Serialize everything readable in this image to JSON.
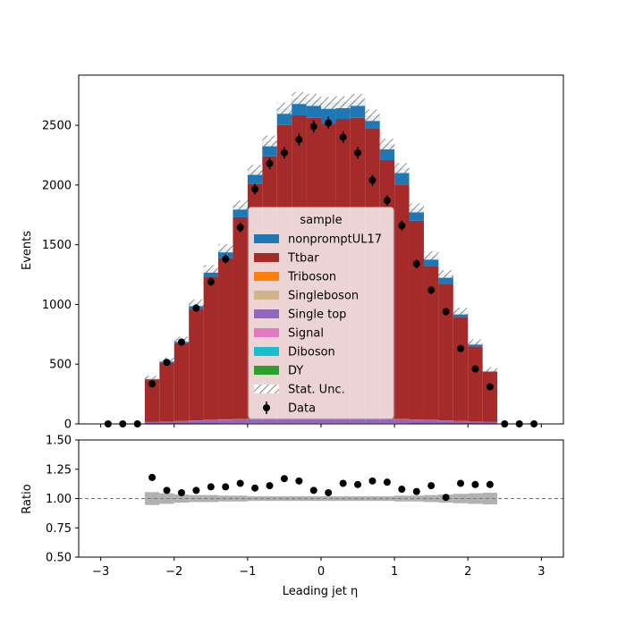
{
  "chart_data": [
    {
      "type": "bar",
      "stacked": true,
      "xlabel": "Leading jet  η",
      "ylabel": "Events",
      "xlim": [
        -3.3,
        3.3
      ],
      "ylim": [
        0,
        2920
      ],
      "bin_edges": [
        -3.0,
        -2.8,
        -2.6,
        -2.4,
        -2.2,
        -2.0,
        -1.8,
        -1.6,
        -1.4,
        -1.2,
        -1.0,
        -0.8,
        -0.6,
        -0.4,
        -0.2,
        0.0,
        0.2,
        0.4,
        0.6,
        0.8,
        1.0,
        1.2,
        1.4,
        1.6,
        1.8,
        2.0,
        2.2,
        2.4,
        2.6,
        2.8,
        3.0
      ],
      "x_ticks": [
        -3,
        -2,
        -1,
        0,
        1,
        2,
        3
      ],
      "x_tick_labels": [
        "−3",
        "−2",
        "−1",
        "0",
        "1",
        "2",
        "3"
      ],
      "y_ticks": [
        0,
        500,
        1000,
        1500,
        2000,
        2500
      ],
      "y_tick_labels": [
        "0",
        "500",
        "1000",
        "1500",
        "2000",
        "2500"
      ],
      "series": [
        {
          "name": "DY",
          "color": "#2ca02c",
          "values": [
            0,
            0,
            0,
            1,
            1,
            1,
            2,
            2,
            2,
            2,
            3,
            3,
            3,
            3,
            3,
            3,
            3,
            3,
            3,
            3,
            2,
            2,
            2,
            2,
            1,
            1,
            1,
            0,
            0,
            0
          ]
        },
        {
          "name": "Diboson",
          "color": "#17becf",
          "values": [
            0,
            0,
            0,
            1,
            1,
            1,
            1,
            1,
            2,
            2,
            2,
            2,
            2,
            2,
            2,
            2,
            2,
            2,
            2,
            2,
            2,
            1,
            1,
            1,
            1,
            1,
            1,
            0,
            0,
            0
          ]
        },
        {
          "name": "Signal",
          "color": "#e377c2",
          "values": [
            0,
            0,
            0,
            1,
            1,
            1,
            1,
            1,
            2,
            2,
            2,
            2,
            2,
            2,
            2,
            2,
            2,
            2,
            2,
            2,
            2,
            1,
            1,
            1,
            1,
            1,
            1,
            0,
            0,
            0
          ]
        },
        {
          "name": "Single top",
          "color": "#9467bd",
          "values": [
            0,
            0,
            0,
            12,
            15,
            20,
            24,
            27,
            30,
            32,
            35,
            37,
            38,
            39,
            38,
            38,
            39,
            38,
            37,
            35,
            32,
            30,
            27,
            24,
            20,
            15,
            12,
            0,
            0,
            0
          ]
        },
        {
          "name": "Singleboson",
          "color": "#d2b48c",
          "values": [
            0,
            0,
            0,
            1,
            1,
            1,
            1,
            2,
            2,
            2,
            2,
            2,
            2,
            2,
            2,
            2,
            2,
            2,
            2,
            2,
            2,
            2,
            2,
            1,
            1,
            1,
            1,
            0,
            0,
            0
          ]
        },
        {
          "name": "Triboson",
          "color": "#ff7f0e",
          "values": [
            0,
            0,
            0,
            0,
            0,
            0,
            0,
            0,
            0,
            0,
            0,
            0,
            0,
            0,
            0,
            0,
            0,
            0,
            0,
            0,
            0,
            0,
            0,
            0,
            0,
            0,
            0,
            0,
            0,
            0
          ]
        },
        {
          "name": "Ttbar",
          "color": "#a52a2a",
          "values": [
            0,
            0,
            0,
            357,
            495,
            655,
            935,
            1195,
            1350,
            1690,
            1965,
            2195,
            2455,
            2535,
            2515,
            2465,
            2505,
            2515,
            2425,
            2165,
            1965,
            1665,
            1285,
            1145,
            872,
            625,
            425,
            0,
            0,
            0
          ]
        },
        {
          "name": "nonpromptUL17",
          "color": "#1f77b4",
          "values": [
            0,
            0,
            0,
            17,
            25,
            30,
            50,
            70,
            83,
            102,
            118,
            128,
            142,
            145,
            150,
            175,
            140,
            150,
            113,
            134,
            137,
            108,
            92,
            81,
            48,
            42,
            15,
            0,
            0,
            0
          ]
        }
      ],
      "stat_unc": [
        0,
        0,
        0,
        15,
        18,
        22,
        28,
        32,
        35,
        38,
        42,
        45,
        48,
        50,
        50,
        50,
        50,
        50,
        48,
        45,
        42,
        38,
        35,
        32,
        28,
        22,
        18,
        0,
        0,
        0
      ],
      "data": {
        "name": "Data",
        "x": [
          -2.9,
          -2.7,
          -2.5,
          -2.3,
          -2.1,
          -1.9,
          -1.7,
          -1.5,
          -1.3,
          -1.1,
          -0.9,
          -0.7,
          -0.5,
          -0.3,
          -0.1,
          0.1,
          0.3,
          0.5,
          0.7,
          0.9,
          1.1,
          1.3,
          1.5,
          1.7,
          1.9,
          2.1,
          2.3,
          2.5,
          2.7,
          2.9
        ],
        "y": [
          0,
          0,
          0,
          335,
          515,
          685,
          970,
          1190,
          1380,
          1645,
          1965,
          2180,
          2270,
          2380,
          2490,
          2520,
          2400,
          2270,
          2040,
          1870,
          1660,
          1340,
          1120,
          940,
          630,
          460,
          310,
          0,
          0,
          0
        ],
        "yerr": [
          0,
          0,
          0,
          18,
          23,
          26,
          31,
          35,
          37,
          41,
          44,
          47,
          48,
          49,
          50,
          50,
          49,
          48,
          45,
          43,
          41,
          37,
          33,
          31,
          25,
          21,
          18,
          0,
          0,
          0
        ]
      },
      "legend": {
        "title": "sample",
        "placement": "center",
        "entries": [
          "nonpromptUL17",
          "Ttbar",
          "Triboson",
          "Singleboson",
          "Single top",
          "Signal",
          "Diboson",
          "DY",
          "Stat. Unc.",
          "Data"
        ]
      }
    },
    {
      "type": "scatter",
      "xlabel": "Leading jet  η",
      "ylabel": "Ratio",
      "xlim": [
        -3.3,
        3.3
      ],
      "ylim": [
        0.5,
        1.5
      ],
      "y_ticks": [
        0.5,
        0.75,
        1.0,
        1.25,
        1.5
      ],
      "y_tick_labels": [
        "0.50",
        "0.75",
        "1.00",
        "1.25",
        "1.50"
      ],
      "x": [
        -2.3,
        -2.1,
        -1.9,
        -1.7,
        -1.5,
        -1.3,
        -1.1,
        -0.9,
        -0.7,
        -0.5,
        -0.3,
        -0.1,
        0.1,
        0.3,
        0.5,
        0.7,
        0.9,
        1.1,
        1.3,
        1.5,
        1.7,
        1.9,
        2.1,
        2.3
      ],
      "y": [
        1.18,
        1.07,
        1.05,
        1.07,
        1.1,
        1.1,
        1.13,
        1.09,
        1.11,
        1.17,
        1.15,
        1.07,
        1.05,
        1.13,
        1.12,
        1.15,
        1.14,
        1.08,
        1.06,
        1.11,
        1.01,
        1.13,
        1.12,
        1.12
      ],
      "band_halfwidth": [
        0.055,
        0.045,
        0.035,
        0.03,
        0.03,
        0.025,
        0.025,
        0.02,
        0.02,
        0.02,
        0.02,
        0.02,
        0.02,
        0.02,
        0.02,
        0.02,
        0.02,
        0.025,
        0.025,
        0.03,
        0.035,
        0.04,
        0.045,
        0.05
      ],
      "reference_line": 1.0
    }
  ]
}
